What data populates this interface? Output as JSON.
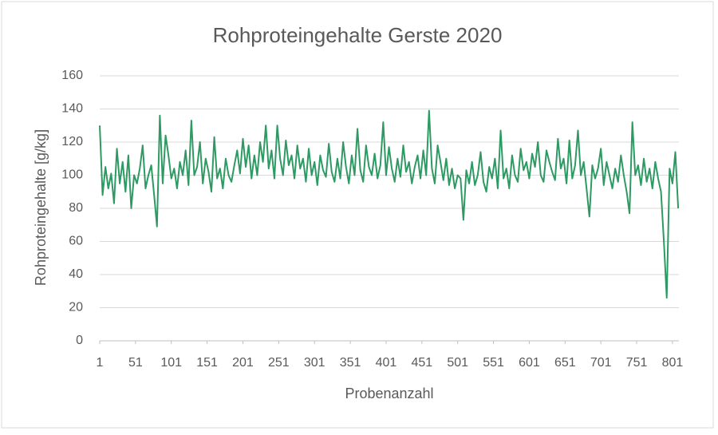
{
  "chart_data": {
    "type": "line",
    "title": "Rohproteingehalte Gerste 2020",
    "x_label": "Probenanzahl",
    "y_label": "Rohproteingehalte [g/kg]",
    "xlim": [
      1,
      810
    ],
    "xticks": [
      1,
      51,
      101,
      151,
      201,
      251,
      301,
      351,
      401,
      451,
      501,
      551,
      601,
      651,
      701,
      751,
      801
    ],
    "ylim": [
      0,
      160
    ],
    "yticks": [
      0,
      20,
      40,
      60,
      80,
      100,
      120,
      140,
      160
    ],
    "grid": true,
    "series": [
      {
        "color": "#2e9a63",
        "x": [
          1,
          5,
          9,
          13,
          17,
          21,
          25,
          29,
          33,
          37,
          41,
          45,
          49,
          53,
          57,
          61,
          65,
          69,
          73,
          77,
          81,
          85,
          89,
          93,
          97,
          101,
          105,
          109,
          113,
          117,
          121,
          125,
          129,
          133,
          137,
          141,
          145,
          149,
          153,
          157,
          161,
          165,
          169,
          173,
          177,
          181,
          185,
          189,
          193,
          197,
          201,
          205,
          209,
          213,
          217,
          221,
          225,
          229,
          233,
          237,
          241,
          245,
          249,
          253,
          257,
          261,
          265,
          269,
          273,
          277,
          281,
          285,
          289,
          293,
          297,
          301,
          305,
          309,
          313,
          317,
          321,
          325,
          329,
          333,
          337,
          341,
          345,
          349,
          353,
          357,
          361,
          365,
          369,
          373,
          377,
          381,
          385,
          389,
          393,
          397,
          401,
          405,
          409,
          413,
          417,
          421,
          425,
          429,
          433,
          437,
          441,
          445,
          449,
          453,
          457,
          461,
          465,
          469,
          473,
          477,
          481,
          485,
          489,
          493,
          497,
          501,
          505,
          509,
          513,
          517,
          521,
          525,
          529,
          533,
          537,
          541,
          545,
          549,
          553,
          557,
          561,
          565,
          569,
          573,
          577,
          581,
          585,
          589,
          593,
          597,
          601,
          605,
          609,
          613,
          617,
          621,
          625,
          629,
          633,
          637,
          641,
          645,
          649,
          653,
          657,
          661,
          665,
          669,
          673,
          677,
          681,
          685,
          689,
          693,
          697,
          701,
          705,
          709,
          713,
          717,
          721,
          725,
          729,
          733,
          737,
          741,
          745,
          749,
          753,
          757,
          761,
          765,
          769,
          773,
          777,
          781,
          785,
          789,
          793,
          797,
          801,
          805,
          809
        ],
        "values": [
          130,
          88,
          105,
          92,
          101,
          83,
          116,
          95,
          108,
          90,
          112,
          80,
          100,
          95,
          104,
          118,
          92,
          100,
          106,
          88,
          69,
          136,
          95,
          124,
          112,
          98,
          104,
          92,
          108,
          100,
          115,
          94,
          133,
          100,
          105,
          120,
          95,
          110,
          102,
          90,
          123,
          98,
          104,
          92,
          110,
          100,
          96,
          106,
          115,
          101,
          122,
          105,
          118,
          98,
          112,
          100,
          120,
          108,
          130,
          104,
          115,
          98,
          130,
          110,
          100,
          121,
          106,
          112,
          98,
          118,
          104,
          110,
          96,
          116,
          100,
          108,
          94,
          112,
          103,
          99,
          119,
          102,
          96,
          110,
          98,
          120,
          105,
          95,
          112,
          100,
          128,
          103,
          96,
          118,
          105,
          100,
          113,
          98,
          106,
          132,
          100,
          117,
          104,
          96,
          110,
          99,
          118,
          102,
          108,
          95,
          105,
          112,
          98,
          115,
          100,
          139,
          104,
          95,
          118,
          108,
          97,
          110,
          94,
          104,
          92,
          100,
          98,
          73,
          103,
          95,
          108,
          94,
          100,
          114,
          96,
          90,
          105,
          98,
          110,
          92,
          127,
          98,
          104,
          92,
          112,
          100,
          96,
          116,
          103,
          108,
          98,
          113,
          105,
          120,
          100,
          96,
          115,
          108,
          102,
          97,
          122,
          104,
          110,
          95,
          121,
          98,
          106,
          127,
          100,
          108,
          92,
          75,
          106,
          98,
          104,
          116,
          94,
          108,
          100,
          92,
          104,
          96,
          112,
          100,
          90,
          77,
          132,
          100,
          106,
          94,
          110,
          96,
          104,
          92,
          108,
          98,
          90,
          60,
          26,
          104,
          95,
          114,
          80
        ]
      }
    ]
  }
}
